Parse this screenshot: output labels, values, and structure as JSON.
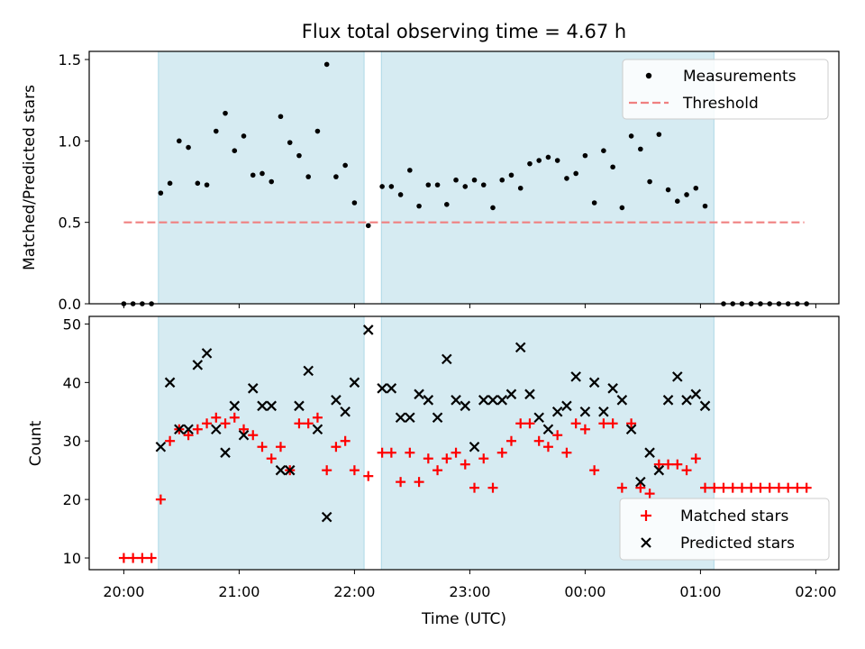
{
  "title": "Flux total observing time = 4.67 h",
  "colors": {
    "measurement": "#000000",
    "threshold": "#f08080",
    "matched": "#ff0000",
    "predicted": "#000000",
    "band": "#add8e6"
  },
  "chart_data": [
    {
      "type": "scatter",
      "title": "Flux total observing time = 4.67 h",
      "ylabel": "Matched/Predicted stars",
      "ylim": [
        0,
        1.55
      ],
      "yticks": [
        "0.0",
        "0.5",
        "1.0",
        "1.5"
      ],
      "x_unit": "hours since 20:00 UTC",
      "shaded_intervals": [
        [
          "20:18",
          "22:05"
        ],
        [
          "22:14",
          "01:07"
        ]
      ],
      "threshold": {
        "name": "Threshold",
        "value": 0.5,
        "x_range": [
          "20:00",
          "01:54"
        ]
      },
      "legend": {
        "position": "top-right",
        "entries": [
          "Measurements",
          "Threshold"
        ]
      },
      "series": [
        {
          "name": "Measurements",
          "marker": "dot",
          "points": [
            [
              0,
              0
            ],
            [
              0.08,
              0
            ],
            [
              0.16,
              0
            ],
            [
              0.24,
              0
            ],
            [
              0.32,
              0.68
            ],
            [
              0.4,
              0.74
            ],
            [
              0.48,
              1.0
            ],
            [
              0.56,
              0.96
            ],
            [
              0.64,
              0.74
            ],
            [
              0.72,
              0.73
            ],
            [
              0.8,
              1.06
            ],
            [
              0.88,
              1.17
            ],
            [
              0.96,
              0.94
            ],
            [
              1.04,
              1.03
            ],
            [
              1.12,
              0.79
            ],
            [
              1.2,
              0.8
            ],
            [
              1.28,
              0.75
            ],
            [
              1.36,
              1.15
            ],
            [
              1.44,
              0.99
            ],
            [
              1.52,
              0.91
            ],
            [
              1.6,
              0.78
            ],
            [
              1.68,
              1.06
            ],
            [
              1.76,
              1.47
            ],
            [
              1.84,
              0.78
            ],
            [
              1.92,
              0.85
            ],
            [
              2.0,
              0.62
            ],
            [
              2.12,
              0.48
            ],
            [
              2.24,
              0.72
            ],
            [
              2.32,
              0.72
            ],
            [
              2.4,
              0.67
            ],
            [
              2.48,
              0.82
            ],
            [
              2.56,
              0.6
            ],
            [
              2.64,
              0.73
            ],
            [
              2.72,
              0.73
            ],
            [
              2.8,
              0.61
            ],
            [
              2.88,
              0.76
            ],
            [
              2.96,
              0.72
            ],
            [
              3.04,
              0.76
            ],
            [
              3.12,
              0.73
            ],
            [
              3.2,
              0.59
            ],
            [
              3.28,
              0.76
            ],
            [
              3.36,
              0.79
            ],
            [
              3.44,
              0.71
            ],
            [
              3.52,
              0.86
            ],
            [
              3.6,
              0.88
            ],
            [
              3.68,
              0.9
            ],
            [
              3.76,
              0.88
            ],
            [
              3.84,
              0.77
            ],
            [
              3.92,
              0.8
            ],
            [
              4.0,
              0.91
            ],
            [
              4.08,
              0.62
            ],
            [
              4.16,
              0.94
            ],
            [
              4.24,
              0.84
            ],
            [
              4.32,
              0.59
            ],
            [
              4.4,
              1.03
            ],
            [
              4.48,
              0.95
            ],
            [
              4.56,
              0.75
            ],
            [
              4.64,
              1.04
            ],
            [
              4.72,
              0.7
            ],
            [
              4.8,
              0.63
            ],
            [
              4.88,
              0.67
            ],
            [
              4.96,
              0.71
            ],
            [
              5.04,
              0.6
            ],
            [
              5.2,
              0
            ],
            [
              5.28,
              0
            ],
            [
              5.36,
              0
            ],
            [
              5.44,
              0
            ],
            [
              5.52,
              0
            ],
            [
              5.6,
              0
            ],
            [
              5.68,
              0
            ],
            [
              5.76,
              0
            ],
            [
              5.84,
              0
            ],
            [
              5.92,
              0
            ]
          ]
        }
      ]
    },
    {
      "type": "scatter",
      "xlabel": "Time (UTC)",
      "ylabel": "Count",
      "ylim": [
        8,
        51.3
      ],
      "yticks": [
        "10",
        "20",
        "30",
        "40",
        "50"
      ],
      "xticks": [
        "20:00",
        "21:00",
        "22:00",
        "23:00",
        "00:00",
        "01:00",
        "02:00"
      ],
      "xlim_hours": [
        -0.3,
        6.2
      ],
      "legend": {
        "position": "bottom-right",
        "entries": [
          "Matched stars",
          "Predicted stars"
        ]
      },
      "series": [
        {
          "name": "Matched stars",
          "marker": "plus",
          "points": [
            [
              0,
              10
            ],
            [
              0.08,
              10
            ],
            [
              0.16,
              10
            ],
            [
              0.24,
              10
            ],
            [
              0.32,
              20
            ],
            [
              0.4,
              30
            ],
            [
              0.48,
              32
            ],
            [
              0.56,
              31
            ],
            [
              0.64,
              32
            ],
            [
              0.72,
              33
            ],
            [
              0.8,
              34
            ],
            [
              0.88,
              33
            ],
            [
              0.96,
              34
            ],
            [
              1.04,
              32
            ],
            [
              1.12,
              31
            ],
            [
              1.2,
              29
            ],
            [
              1.28,
              27
            ],
            [
              1.36,
              29
            ],
            [
              1.44,
              25
            ],
            [
              1.52,
              33
            ],
            [
              1.6,
              33
            ],
            [
              1.68,
              34
            ],
            [
              1.76,
              25
            ],
            [
              1.84,
              29
            ],
            [
              1.92,
              30
            ],
            [
              2.0,
              25
            ],
            [
              2.12,
              24
            ],
            [
              2.24,
              28
            ],
            [
              2.32,
              28
            ],
            [
              2.4,
              23
            ],
            [
              2.48,
              28
            ],
            [
              2.56,
              23
            ],
            [
              2.64,
              27
            ],
            [
              2.72,
              25
            ],
            [
              2.8,
              27
            ],
            [
              2.88,
              28
            ],
            [
              2.96,
              26
            ],
            [
              3.04,
              22
            ],
            [
              3.12,
              27
            ],
            [
              3.2,
              22
            ],
            [
              3.28,
              28
            ],
            [
              3.36,
              30
            ],
            [
              3.44,
              33
            ],
            [
              3.52,
              33
            ],
            [
              3.6,
              30
            ],
            [
              3.68,
              29
            ],
            [
              3.76,
              31
            ],
            [
              3.84,
              28
            ],
            [
              3.92,
              33
            ],
            [
              4.0,
              32
            ],
            [
              4.08,
              25
            ],
            [
              4.16,
              33
            ],
            [
              4.24,
              33
            ],
            [
              4.32,
              22
            ],
            [
              4.4,
              33
            ],
            [
              4.48,
              22
            ],
            [
              4.56,
              21
            ],
            [
              4.64,
              26
            ],
            [
              4.72,
              26
            ],
            [
              4.8,
              26
            ],
            [
              4.88,
              25
            ],
            [
              4.96,
              27
            ],
            [
              5.04,
              22
            ],
            [
              5.12,
              22
            ],
            [
              5.2,
              22
            ],
            [
              5.28,
              22
            ],
            [
              5.36,
              22
            ],
            [
              5.44,
              22
            ],
            [
              5.52,
              22
            ],
            [
              5.6,
              22
            ],
            [
              5.68,
              22
            ],
            [
              5.76,
              22
            ],
            [
              5.84,
              22
            ],
            [
              5.92,
              22
            ]
          ]
        },
        {
          "name": "Predicted stars",
          "marker": "x",
          "points": [
            [
              0.32,
              29
            ],
            [
              0.4,
              40
            ],
            [
              0.48,
              32
            ],
            [
              0.56,
              32
            ],
            [
              0.64,
              43
            ],
            [
              0.72,
              45
            ],
            [
              0.8,
              32
            ],
            [
              0.88,
              28
            ],
            [
              0.96,
              36
            ],
            [
              1.04,
              31
            ],
            [
              1.12,
              39
            ],
            [
              1.2,
              36
            ],
            [
              1.28,
              36
            ],
            [
              1.36,
              25
            ],
            [
              1.44,
              25
            ],
            [
              1.52,
              36
            ],
            [
              1.6,
              42
            ],
            [
              1.68,
              32
            ],
            [
              1.76,
              17
            ],
            [
              1.84,
              37
            ],
            [
              1.92,
              35
            ],
            [
              2.0,
              40
            ],
            [
              2.12,
              49
            ],
            [
              2.24,
              39
            ],
            [
              2.32,
              39
            ],
            [
              2.4,
              34
            ],
            [
              2.48,
              34
            ],
            [
              2.56,
              38
            ],
            [
              2.64,
              37
            ],
            [
              2.72,
              34
            ],
            [
              2.8,
              44
            ],
            [
              2.88,
              37
            ],
            [
              2.96,
              36
            ],
            [
              3.04,
              29
            ],
            [
              3.12,
              37
            ],
            [
              3.2,
              37
            ],
            [
              3.28,
              37
            ],
            [
              3.36,
              38
            ],
            [
              3.44,
              46
            ],
            [
              3.52,
              38
            ],
            [
              3.6,
              34
            ],
            [
              3.68,
              32
            ],
            [
              3.76,
              35
            ],
            [
              3.84,
              36
            ],
            [
              3.92,
              41
            ],
            [
              4.0,
              35
            ],
            [
              4.08,
              40
            ],
            [
              4.16,
              35
            ],
            [
              4.24,
              39
            ],
            [
              4.32,
              37
            ],
            [
              4.4,
              32
            ],
            [
              4.48,
              23
            ],
            [
              4.56,
              28
            ],
            [
              4.64,
              25
            ],
            [
              4.72,
              37
            ],
            [
              4.8,
              41
            ],
            [
              4.88,
              37
            ],
            [
              4.96,
              38
            ],
            [
              5.04,
              36
            ]
          ]
        }
      ]
    }
  ]
}
